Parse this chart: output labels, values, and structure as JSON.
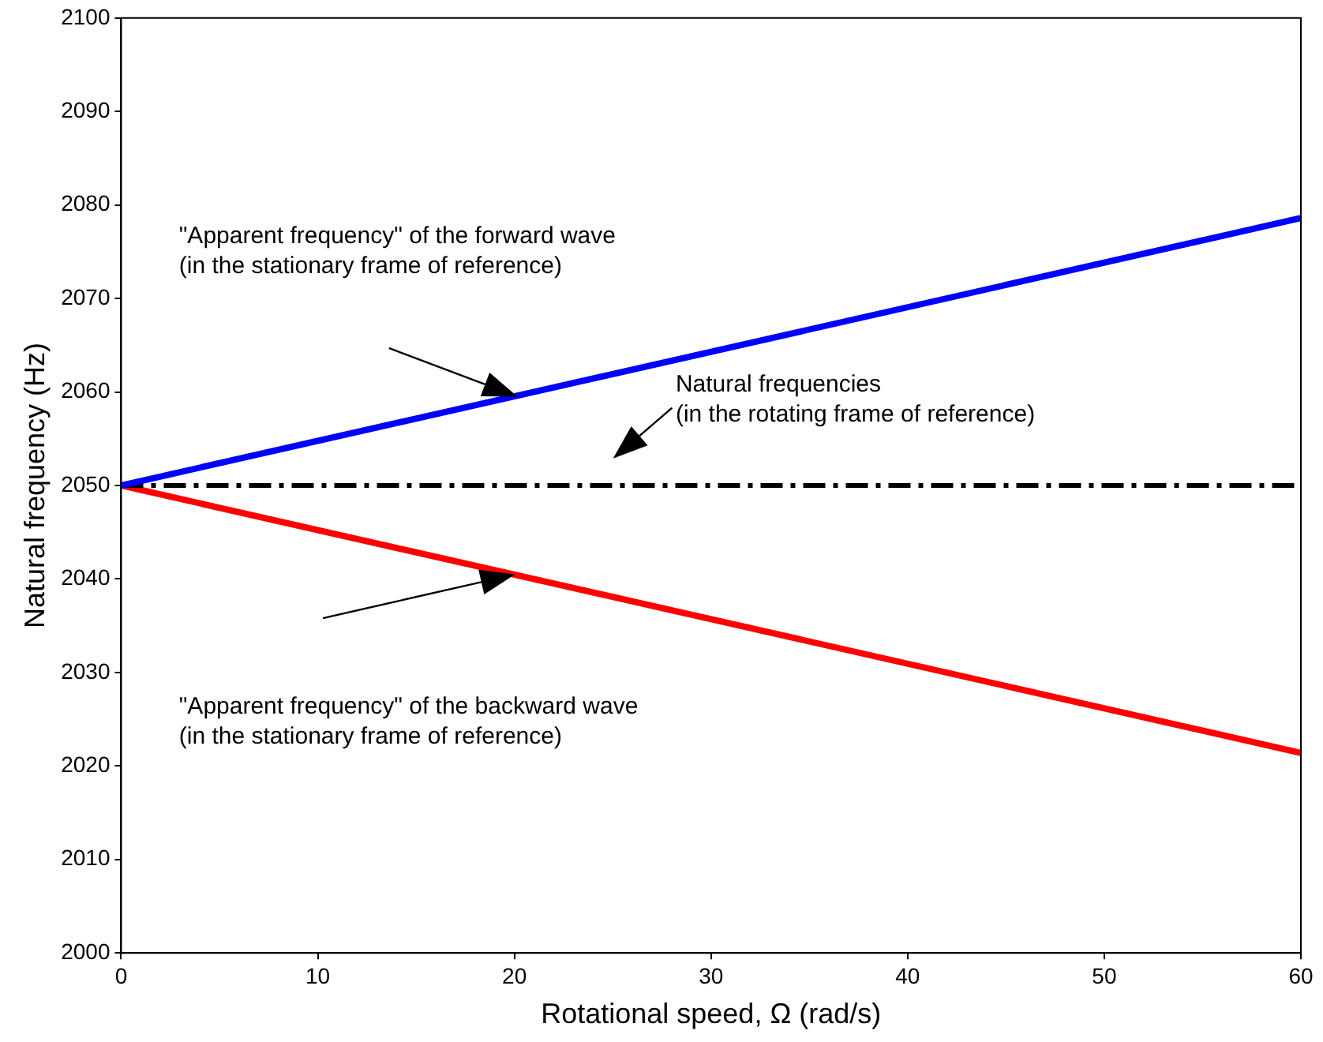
{
  "chart_data": {
    "type": "line",
    "xlabel": "Rotational speed, Ω (rad/s)",
    "ylabel": "Natural frequency (Hz)",
    "x": [
      0,
      60
    ],
    "series": [
      {
        "color": "#0000ff",
        "values": [
          2050,
          2078.6
        ]
      },
      {
        "color": "#000000",
        "values": [
          2050,
          2050
        ],
        "line_style": "dashed"
      },
      {
        "color": "#ff0000",
        "values": [
          2050,
          2021.4
        ]
      }
    ],
    "xlim": [
      0,
      60
    ],
    "xticks": [
      0,
      10,
      20,
      30,
      40,
      50,
      60
    ],
    "ylim": [
      2000,
      2100
    ],
    "yticks": [
      2000,
      2010,
      2020,
      2030,
      2040,
      2050,
      2060,
      2070,
      2080,
      2090,
      2100
    ],
    "grid": false,
    "legend": false,
    "marker": "none",
    "line_style": "solid",
    "annotations": [
      "\"Apparent frequency\" of the forward wave\n(in the stationary frame of reference)",
      "Natural frequencies\n(in the rotating frame of reference)",
      "\"Apparent frequency\" of the backward wave\n(in the stationary frame of reference)"
    ]
  }
}
